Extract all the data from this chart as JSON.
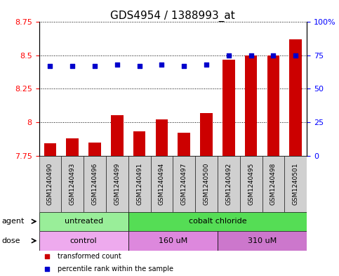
{
  "title": "GDS4954 / 1388993_at",
  "samples": [
    "GSM1240490",
    "GSM1240493",
    "GSM1240496",
    "GSM1240499",
    "GSM1240491",
    "GSM1240494",
    "GSM1240497",
    "GSM1240500",
    "GSM1240492",
    "GSM1240495",
    "GSM1240498",
    "GSM1240501"
  ],
  "bar_values": [
    7.84,
    7.88,
    7.85,
    8.05,
    7.93,
    8.02,
    7.92,
    8.07,
    8.47,
    8.5,
    8.5,
    8.62
  ],
  "dot_values": [
    67,
    67,
    67,
    68,
    67,
    68,
    67,
    68,
    75,
    75,
    75,
    75
  ],
  "bar_color": "#cc0000",
  "dot_color": "#0000cc",
  "ylim_left": [
    7.75,
    8.75
  ],
  "ylim_right": [
    0,
    100
  ],
  "yticks_left": [
    7.75,
    8.0,
    8.25,
    8.5,
    8.75
  ],
  "yticks_right": [
    0,
    25,
    50,
    75,
    100
  ],
  "ytick_labels_left": [
    "7.75",
    "8",
    "8.25",
    "8.5",
    "8.75"
  ],
  "ytick_labels_right": [
    "0",
    "25",
    "50",
    "75",
    "100%"
  ],
  "agent_groups": [
    {
      "label": "untreated",
      "start": 0,
      "end": 4,
      "color": "#99ee99"
    },
    {
      "label": "cobalt chloride",
      "start": 4,
      "end": 12,
      "color": "#55dd55"
    }
  ],
  "dose_groups": [
    {
      "label": "control",
      "start": 0,
      "end": 4,
      "color": "#eeaaee"
    },
    {
      "label": "160 uM",
      "start": 4,
      "end": 8,
      "color": "#dd88dd"
    },
    {
      "label": "310 uM",
      "start": 8,
      "end": 12,
      "color": "#cc77cc"
    }
  ],
  "legend_items": [
    {
      "color": "#cc0000",
      "label": "transformed count"
    },
    {
      "color": "#0000cc",
      "label": "percentile rank within the sample"
    }
  ],
  "bar_bottom": 7.75,
  "title_fontsize": 11,
  "tick_fontsize": 8,
  "sample_fontsize": 6.5,
  "label_fontsize": 8,
  "group_fontsize": 8
}
